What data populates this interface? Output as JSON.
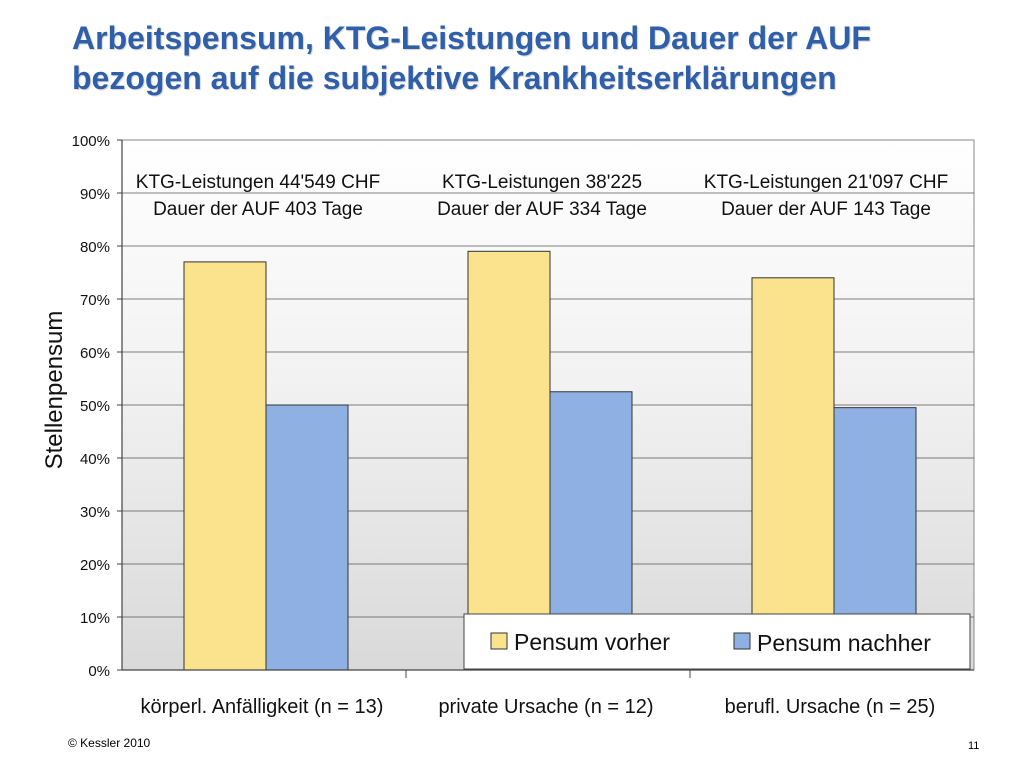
{
  "slide": {
    "title_line1": "Arbeitspensum, KTG-Leistungen und Dauer der AUF",
    "title_line2": "bezogen auf die subjektive Krankheitserklärungen",
    "footer_left": "© Kessler 2010",
    "page_number": "11"
  },
  "chart_data": {
    "type": "bar",
    "title": "",
    "xlabel": "",
    "ylabel": "Stellenpensum",
    "ylim": [
      0,
      100
    ],
    "y_ticks": [
      "0%",
      "10%",
      "20%",
      "30%",
      "40%",
      "50%",
      "60%",
      "70%",
      "80%",
      "90%",
      "100%"
    ],
    "grid": true,
    "legend_position": "bottom-right",
    "categories": [
      "körperl. Anfälligkeit (n = 13)",
      "private Ursache (n = 12)",
      "berufl. Ursache (n = 25)"
    ],
    "series": [
      {
        "name": "Pensum vorher",
        "values": [
          77,
          79,
          74
        ],
        "color": "#fbe38e"
      },
      {
        "name": "Pensum nachher",
        "values": [
          50,
          52.5,
          49.5
        ],
        "color": "#8fb0e3"
      }
    ],
    "annotations": [
      {
        "line1": "KTG-Leistungen 44'549 CHF",
        "line2": "Dauer der AUF 403 Tage"
      },
      {
        "line1": "KTG-Leistungen 38'225",
        "line2": "Dauer der AUF 334 Tage"
      },
      {
        "line1": "KTG-Leistungen 21'097 CHF",
        "line2": "Dauer der AUF 143 Tage"
      }
    ]
  }
}
